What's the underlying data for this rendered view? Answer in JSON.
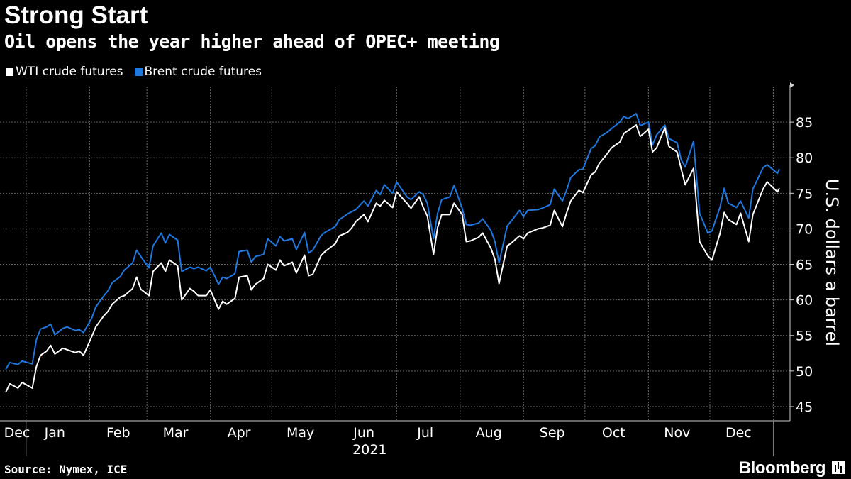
{
  "header": {
    "title": "Strong Start",
    "subtitle": "Oil opens the year higher ahead of OPEC+ meeting"
  },
  "footer": {
    "source": "Source: Nymex, ICE",
    "brand": "Bloomberg"
  },
  "colors": {
    "background": "#000000",
    "wti": "#ffffff",
    "brent": "#1f77e0",
    "grid": "#666666"
  },
  "chart_data": {
    "type": "line",
    "title": "Strong Start",
    "subtitle": "Oil opens the year higher ahead of OPEC+ meeting",
    "ylabel": "U.S. dollars a barrel",
    "ylim": [
      43,
      90
    ],
    "yticks": [
      45,
      50,
      55,
      60,
      65,
      70,
      75,
      80,
      85
    ],
    "y_axis_side": "right",
    "xlim": [
      "2020-12-22",
      "2022-01-05"
    ],
    "x_ticks": [
      {
        "label": "Dec",
        "date": "2020-12-15"
      },
      {
        "label": "Jan",
        "date": "2021-01-15"
      },
      {
        "label": "Feb",
        "date": "2021-02-15"
      },
      {
        "label": "Mar",
        "date": "2021-03-15"
      },
      {
        "label": "Apr",
        "date": "2021-04-15"
      },
      {
        "label": "May",
        "date": "2021-05-15"
      },
      {
        "label": "Jun",
        "date": "2021-06-15"
      },
      {
        "label": "Jul",
        "date": "2021-07-15"
      },
      {
        "label": "Aug",
        "date": "2021-08-15"
      },
      {
        "label": "Sep",
        "date": "2021-09-15"
      },
      {
        "label": "Oct",
        "date": "2021-10-15"
      },
      {
        "label": "Nov",
        "date": "2021-11-15"
      },
      {
        "label": "Dec",
        "date": "2021-12-15"
      }
    ],
    "x_grid": [
      "2021-01-01",
      "2021-02-01",
      "2021-03-01",
      "2021-04-01",
      "2021-05-01",
      "2021-06-01",
      "2021-07-01",
      "2021-08-01",
      "2021-09-01",
      "2021-10-01",
      "2021-11-01",
      "2021-12-01",
      "2022-01-01"
    ],
    "year_label": {
      "text": "2021",
      "date": "2021-07-01"
    },
    "grid": true,
    "legend_position": "top-left",
    "series": [
      {
        "name": "WTI crude futures",
        "color": "#ffffff",
        "x": [
          "2020-12-22",
          "2020-12-24",
          "2020-12-28",
          "2020-12-30",
          "2021-01-04",
          "2021-01-06",
          "2021-01-08",
          "2021-01-11",
          "2021-01-13",
          "2021-01-15",
          "2021-01-19",
          "2021-01-21",
          "2021-01-25",
          "2021-01-27",
          "2021-01-29",
          "2021-02-02",
          "2021-02-04",
          "2021-02-08",
          "2021-02-10",
          "2021-02-12",
          "2021-02-16",
          "2021-02-18",
          "2021-02-22",
          "2021-02-24",
          "2021-02-26",
          "2021-03-02",
          "2021-03-04",
          "2021-03-08",
          "2021-03-10",
          "2021-03-12",
          "2021-03-16",
          "2021-03-18",
          "2021-03-22",
          "2021-03-24",
          "2021-03-26",
          "2021-03-30",
          "2021-04-01",
          "2021-04-05",
          "2021-04-07",
          "2021-04-09",
          "2021-04-13",
          "2021-04-15",
          "2021-04-19",
          "2021-04-21",
          "2021-04-23",
          "2021-04-27",
          "2021-04-29",
          "2021-05-03",
          "2021-05-05",
          "2021-05-07",
          "2021-05-11",
          "2021-05-13",
          "2021-05-17",
          "2021-05-19",
          "2021-05-21",
          "2021-05-25",
          "2021-05-27",
          "2021-06-01",
          "2021-06-03",
          "2021-06-07",
          "2021-06-09",
          "2021-06-11",
          "2021-06-15",
          "2021-06-17",
          "2021-06-21",
          "2021-06-23",
          "2021-06-25",
          "2021-06-29",
          "2021-07-01",
          "2021-07-06",
          "2021-07-08",
          "2021-07-12",
          "2021-07-14",
          "2021-07-16",
          "2021-07-19",
          "2021-07-21",
          "2021-07-23",
          "2021-07-27",
          "2021-07-29",
          "2021-08-02",
          "2021-08-04",
          "2021-08-06",
          "2021-08-10",
          "2021-08-12",
          "2021-08-16",
          "2021-08-18",
          "2021-08-20",
          "2021-08-24",
          "2021-08-26",
          "2021-08-30",
          "2021-09-01",
          "2021-09-03",
          "2021-09-08",
          "2021-09-10",
          "2021-09-14",
          "2021-09-16",
          "2021-09-20",
          "2021-09-22",
          "2021-09-24",
          "2021-09-28",
          "2021-09-30",
          "2021-10-04",
          "2021-10-06",
          "2021-10-08",
          "2021-10-12",
          "2021-10-14",
          "2021-10-18",
          "2021-10-20",
          "2021-10-22",
          "2021-10-26",
          "2021-10-28",
          "2021-11-01",
          "2021-11-03",
          "2021-11-05",
          "2021-11-09",
          "2021-11-11",
          "2021-11-15",
          "2021-11-17",
          "2021-11-19",
          "2021-11-23",
          "2021-11-26",
          "2021-11-30",
          "2021-12-02",
          "2021-12-06",
          "2021-12-08",
          "2021-12-10",
          "2021-12-14",
          "2021-12-16",
          "2021-12-20",
          "2021-12-22",
          "2021-12-27",
          "2021-12-29",
          "2022-01-03",
          "2022-01-04"
        ],
        "values": [
          47.0,
          48.2,
          47.6,
          48.4,
          47.6,
          50.6,
          52.2,
          52.8,
          53.6,
          52.4,
          53.2,
          53.0,
          52.6,
          52.8,
          52.2,
          54.8,
          56.2,
          57.8,
          58.4,
          59.4,
          60.4,
          60.6,
          61.6,
          63.2,
          61.5,
          60.6,
          64.0,
          65.2,
          64.0,
          65.6,
          64.8,
          60.0,
          61.6,
          61.2,
          60.6,
          60.6,
          61.4,
          58.7,
          59.8,
          59.4,
          60.2,
          63.2,
          63.4,
          61.4,
          62.2,
          63.0,
          65.0,
          64.2,
          65.6,
          64.8,
          65.3,
          63.8,
          66.3,
          63.4,
          63.6,
          66.2,
          66.8,
          67.9,
          69.0,
          69.5,
          70.1,
          71.0,
          72.0,
          71.0,
          73.6,
          73.2,
          74.0,
          73.0,
          75.2,
          73.6,
          72.9,
          74.5,
          73.0,
          71.8,
          66.4,
          70.2,
          72.0,
          72.0,
          73.6,
          72.0,
          68.2,
          68.3,
          68.8,
          69.4,
          67.3,
          65.7,
          62.3,
          67.6,
          68.0,
          69.0,
          68.6,
          69.4,
          70.0,
          70.1,
          70.5,
          72.6,
          70.3,
          72.2,
          73.9,
          75.4,
          75.1,
          77.6,
          78.0,
          79.2,
          80.6,
          81.4,
          82.2,
          83.4,
          83.8,
          84.6,
          83.0,
          84.0,
          80.8,
          81.4,
          84.2,
          81.6,
          80.8,
          78.4,
          76.2,
          78.5,
          68.2,
          66.2,
          65.6,
          69.4,
          72.3,
          71.3,
          70.6,
          72.2,
          68.2,
          72.0,
          75.6,
          76.6,
          75.2,
          75.7
        ]
      },
      {
        "name": "Brent crude futures",
        "color": "#1f77e0",
        "x": [
          "2020-12-22",
          "2020-12-24",
          "2020-12-28",
          "2020-12-30",
          "2021-01-04",
          "2021-01-06",
          "2021-01-08",
          "2021-01-11",
          "2021-01-13",
          "2021-01-15",
          "2021-01-19",
          "2021-01-21",
          "2021-01-25",
          "2021-01-27",
          "2021-01-29",
          "2021-02-02",
          "2021-02-04",
          "2021-02-08",
          "2021-02-10",
          "2021-02-12",
          "2021-02-16",
          "2021-02-18",
          "2021-02-22",
          "2021-02-24",
          "2021-02-26",
          "2021-03-02",
          "2021-03-04",
          "2021-03-08",
          "2021-03-10",
          "2021-03-12",
          "2021-03-16",
          "2021-03-18",
          "2021-03-22",
          "2021-03-24",
          "2021-03-26",
          "2021-03-30",
          "2021-04-01",
          "2021-04-05",
          "2021-04-07",
          "2021-04-09",
          "2021-04-13",
          "2021-04-15",
          "2021-04-19",
          "2021-04-21",
          "2021-04-23",
          "2021-04-27",
          "2021-04-29",
          "2021-05-03",
          "2021-05-05",
          "2021-05-07",
          "2021-05-11",
          "2021-05-13",
          "2021-05-17",
          "2021-05-19",
          "2021-05-21",
          "2021-05-25",
          "2021-05-27",
          "2021-06-01",
          "2021-06-03",
          "2021-06-07",
          "2021-06-09",
          "2021-06-11",
          "2021-06-15",
          "2021-06-17",
          "2021-06-21",
          "2021-06-23",
          "2021-06-25",
          "2021-06-29",
          "2021-07-01",
          "2021-07-06",
          "2021-07-08",
          "2021-07-12",
          "2021-07-14",
          "2021-07-16",
          "2021-07-19",
          "2021-07-21",
          "2021-07-23",
          "2021-07-27",
          "2021-07-29",
          "2021-08-02",
          "2021-08-04",
          "2021-08-06",
          "2021-08-10",
          "2021-08-12",
          "2021-08-16",
          "2021-08-18",
          "2021-08-20",
          "2021-08-24",
          "2021-08-26",
          "2021-08-30",
          "2021-09-01",
          "2021-09-03",
          "2021-09-08",
          "2021-09-10",
          "2021-09-14",
          "2021-09-16",
          "2021-09-20",
          "2021-09-22",
          "2021-09-24",
          "2021-09-28",
          "2021-09-30",
          "2021-10-04",
          "2021-10-06",
          "2021-10-08",
          "2021-10-12",
          "2021-10-14",
          "2021-10-18",
          "2021-10-20",
          "2021-10-22",
          "2021-10-26",
          "2021-10-28",
          "2021-11-01",
          "2021-11-03",
          "2021-11-05",
          "2021-11-09",
          "2021-11-11",
          "2021-11-15",
          "2021-11-17",
          "2021-11-19",
          "2021-11-23",
          "2021-11-26",
          "2021-11-30",
          "2021-12-02",
          "2021-12-06",
          "2021-12-08",
          "2021-12-10",
          "2021-12-14",
          "2021-12-16",
          "2021-12-20",
          "2021-12-22",
          "2021-12-27",
          "2021-12-29",
          "2022-01-03",
          "2022-01-04"
        ],
        "values": [
          50.2,
          51.2,
          50.9,
          51.4,
          51.0,
          54.4,
          55.9,
          56.2,
          56.6,
          55.1,
          56.0,
          56.2,
          55.7,
          55.8,
          55.4,
          57.4,
          59.0,
          60.6,
          61.3,
          62.4,
          63.3,
          64.2,
          65.2,
          67.0,
          66.1,
          64.5,
          67.6,
          69.4,
          68.0,
          69.2,
          68.4,
          64.0,
          64.6,
          64.4,
          64.6,
          64.1,
          64.6,
          62.2,
          63.2,
          63.0,
          63.7,
          66.8,
          67.0,
          65.3,
          66.1,
          66.4,
          68.6,
          67.6,
          68.9,
          68.3,
          68.6,
          67.1,
          69.5,
          66.6,
          67.0,
          69.0,
          69.5,
          70.3,
          71.3,
          72.1,
          72.4,
          72.7,
          73.9,
          73.2,
          75.4,
          74.8,
          76.2,
          75.0,
          76.6,
          74.5,
          74.1,
          75.2,
          74.8,
          73.6,
          68.6,
          72.2,
          74.1,
          74.5,
          76.1,
          72.9,
          70.6,
          70.5,
          70.8,
          71.4,
          69.8,
          68.2,
          65.2,
          70.4,
          71.1,
          72.6,
          71.7,
          72.6,
          72.7,
          72.9,
          73.4,
          75.6,
          73.9,
          75.4,
          77.2,
          78.3,
          78.4,
          81.3,
          81.7,
          82.9,
          83.6,
          84.1,
          85.0,
          85.8,
          85.5,
          86.2,
          84.5,
          85.0,
          81.8,
          83.2,
          84.6,
          82.7,
          82.1,
          79.7,
          78.7,
          82.3,
          72.2,
          69.4,
          69.7,
          73.1,
          75.7,
          73.6,
          73.0,
          73.9,
          71.5,
          75.6,
          78.6,
          79.0,
          77.8,
          78.4
        ]
      }
    ]
  }
}
